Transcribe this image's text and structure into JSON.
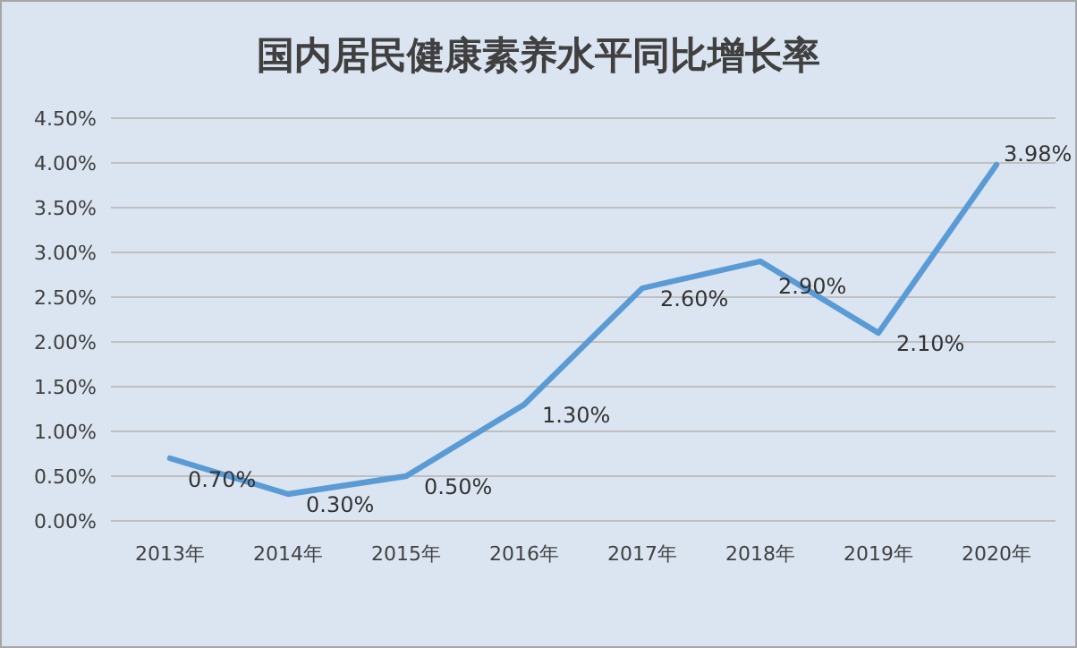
{
  "chart_data": {
    "type": "line",
    "title": "国内居民健康素养水平同比增长率",
    "categories": [
      "2013年",
      "2014年",
      "2015年",
      "2016年",
      "2017年",
      "2018年",
      "2019年",
      "2020年"
    ],
    "series": [
      {
        "color": "#5b9bd5",
        "values": [
          0.7,
          0.3,
          0.5,
          1.3,
          2.6,
          2.9,
          2.1,
          3.98
        ],
        "value_labels": [
          "0.70%",
          "0.30%",
          "0.50%",
          "1.30%",
          "2.60%",
          "2.90%",
          "2.10%",
          "3.98%"
        ]
      }
    ],
    "ylim": [
      0,
      4.5
    ],
    "yticks": [
      {
        "value": 0,
        "label": "0.00%"
      },
      {
        "value": 0.5,
        "label": "0.50%"
      },
      {
        "value": 1,
        "label": "1.00%"
      },
      {
        "value": 1.5,
        "label": "1.50%"
      },
      {
        "value": 2,
        "label": "2.00%"
      },
      {
        "value": 2.5,
        "label": "2.50%"
      },
      {
        "value": 3,
        "label": "3.00%"
      },
      {
        "value": 3.5,
        "label": "3.50%"
      },
      {
        "value": 4,
        "label": "4.00%"
      },
      {
        "value": 4.5,
        "label": "4.50%"
      }
    ],
    "grid": "y",
    "marker": "none",
    "line_style": "solid"
  }
}
